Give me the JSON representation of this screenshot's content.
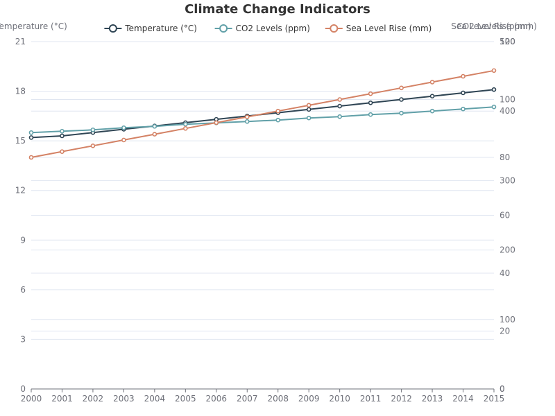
{
  "colors": {
    "background": "#ffffff",
    "text": "#333333",
    "axis_text": "#6e7079",
    "grid": "#e0e6f1",
    "axis_line": "#6e7079"
  },
  "chart_data": {
    "type": "line",
    "title": "Climate Change Indicators",
    "legend": {
      "placement": "top-center"
    },
    "grid": true,
    "x": [
      "2000",
      "2001",
      "2002",
      "2003",
      "2004",
      "2005",
      "2006",
      "2007",
      "2008",
      "2009",
      "2010",
      "2011",
      "2012",
      "2013",
      "2014",
      "2015"
    ],
    "axes": [
      {
        "id": "temp",
        "name": "Temperature (°C)",
        "position": "left",
        "min": 0,
        "max": 21,
        "ticks": [
          "0",
          "3",
          "6",
          "9",
          "12",
          "15",
          "18",
          "21"
        ]
      },
      {
        "id": "co2",
        "name": "CO2 Levels (ppm)",
        "position": "right",
        "min": 0,
        "max": 500,
        "ticks": [
          "0",
          "100",
          "200",
          "300",
          "400",
          "500"
        ]
      },
      {
        "id": "sea",
        "name": "Sea Level Rise (mm)",
        "position": "right",
        "min": 0,
        "max": 120,
        "ticks": [
          "0",
          "20",
          "40",
          "60",
          "80",
          "100",
          "120"
        ]
      }
    ],
    "series": [
      {
        "name": "Temperature (°C)",
        "axis": "temp",
        "color": "#2f4554",
        "values": [
          15.2,
          15.3,
          15.5,
          15.7,
          15.9,
          16.1,
          16.3,
          16.5,
          16.7,
          16.9,
          17.1,
          17.3,
          17.5,
          17.7,
          17.9,
          18.1
        ]
      },
      {
        "name": "CO2 Levels (ppm)",
        "axis": "co2",
        "color": "#61a0a8",
        "values": [
          369,
          371,
          373,
          376,
          378,
          381,
          383,
          385,
          387,
          390,
          392,
          395,
          397,
          400,
          403,
          406
        ]
      },
      {
        "name": "Sea Level Rise (mm)",
        "axis": "sea",
        "color": "#d48265",
        "values": [
          80,
          82,
          84,
          86,
          88,
          90,
          92,
          94,
          96,
          98,
          100,
          102,
          104,
          106,
          108,
          110
        ]
      }
    ]
  }
}
